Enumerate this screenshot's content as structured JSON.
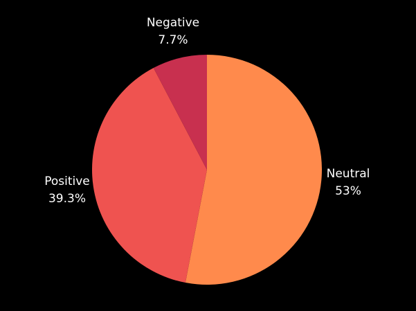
{
  "background_color": "#000000",
  "text_color": "#ffffff",
  "chart_data": {
    "type": "pie",
    "title": "",
    "categories": [
      "Neutral",
      "Positive",
      "Negative"
    ],
    "values": [
      53,
      39.3,
      7.7
    ],
    "value_labels": [
      "53%",
      "39.3%",
      "7.7%"
    ],
    "colors": [
      "#ff8a4c",
      "#ef5350",
      "#c8304f"
    ],
    "start_angle_deg": 0,
    "direction": "clockwise",
    "legend": "none"
  },
  "labels": {
    "neutral": {
      "name": "Neutral",
      "value": "53%"
    },
    "positive": {
      "name": "Positive",
      "value": "39.3%"
    },
    "negative": {
      "name": "Negative",
      "value": "7.7%"
    }
  }
}
